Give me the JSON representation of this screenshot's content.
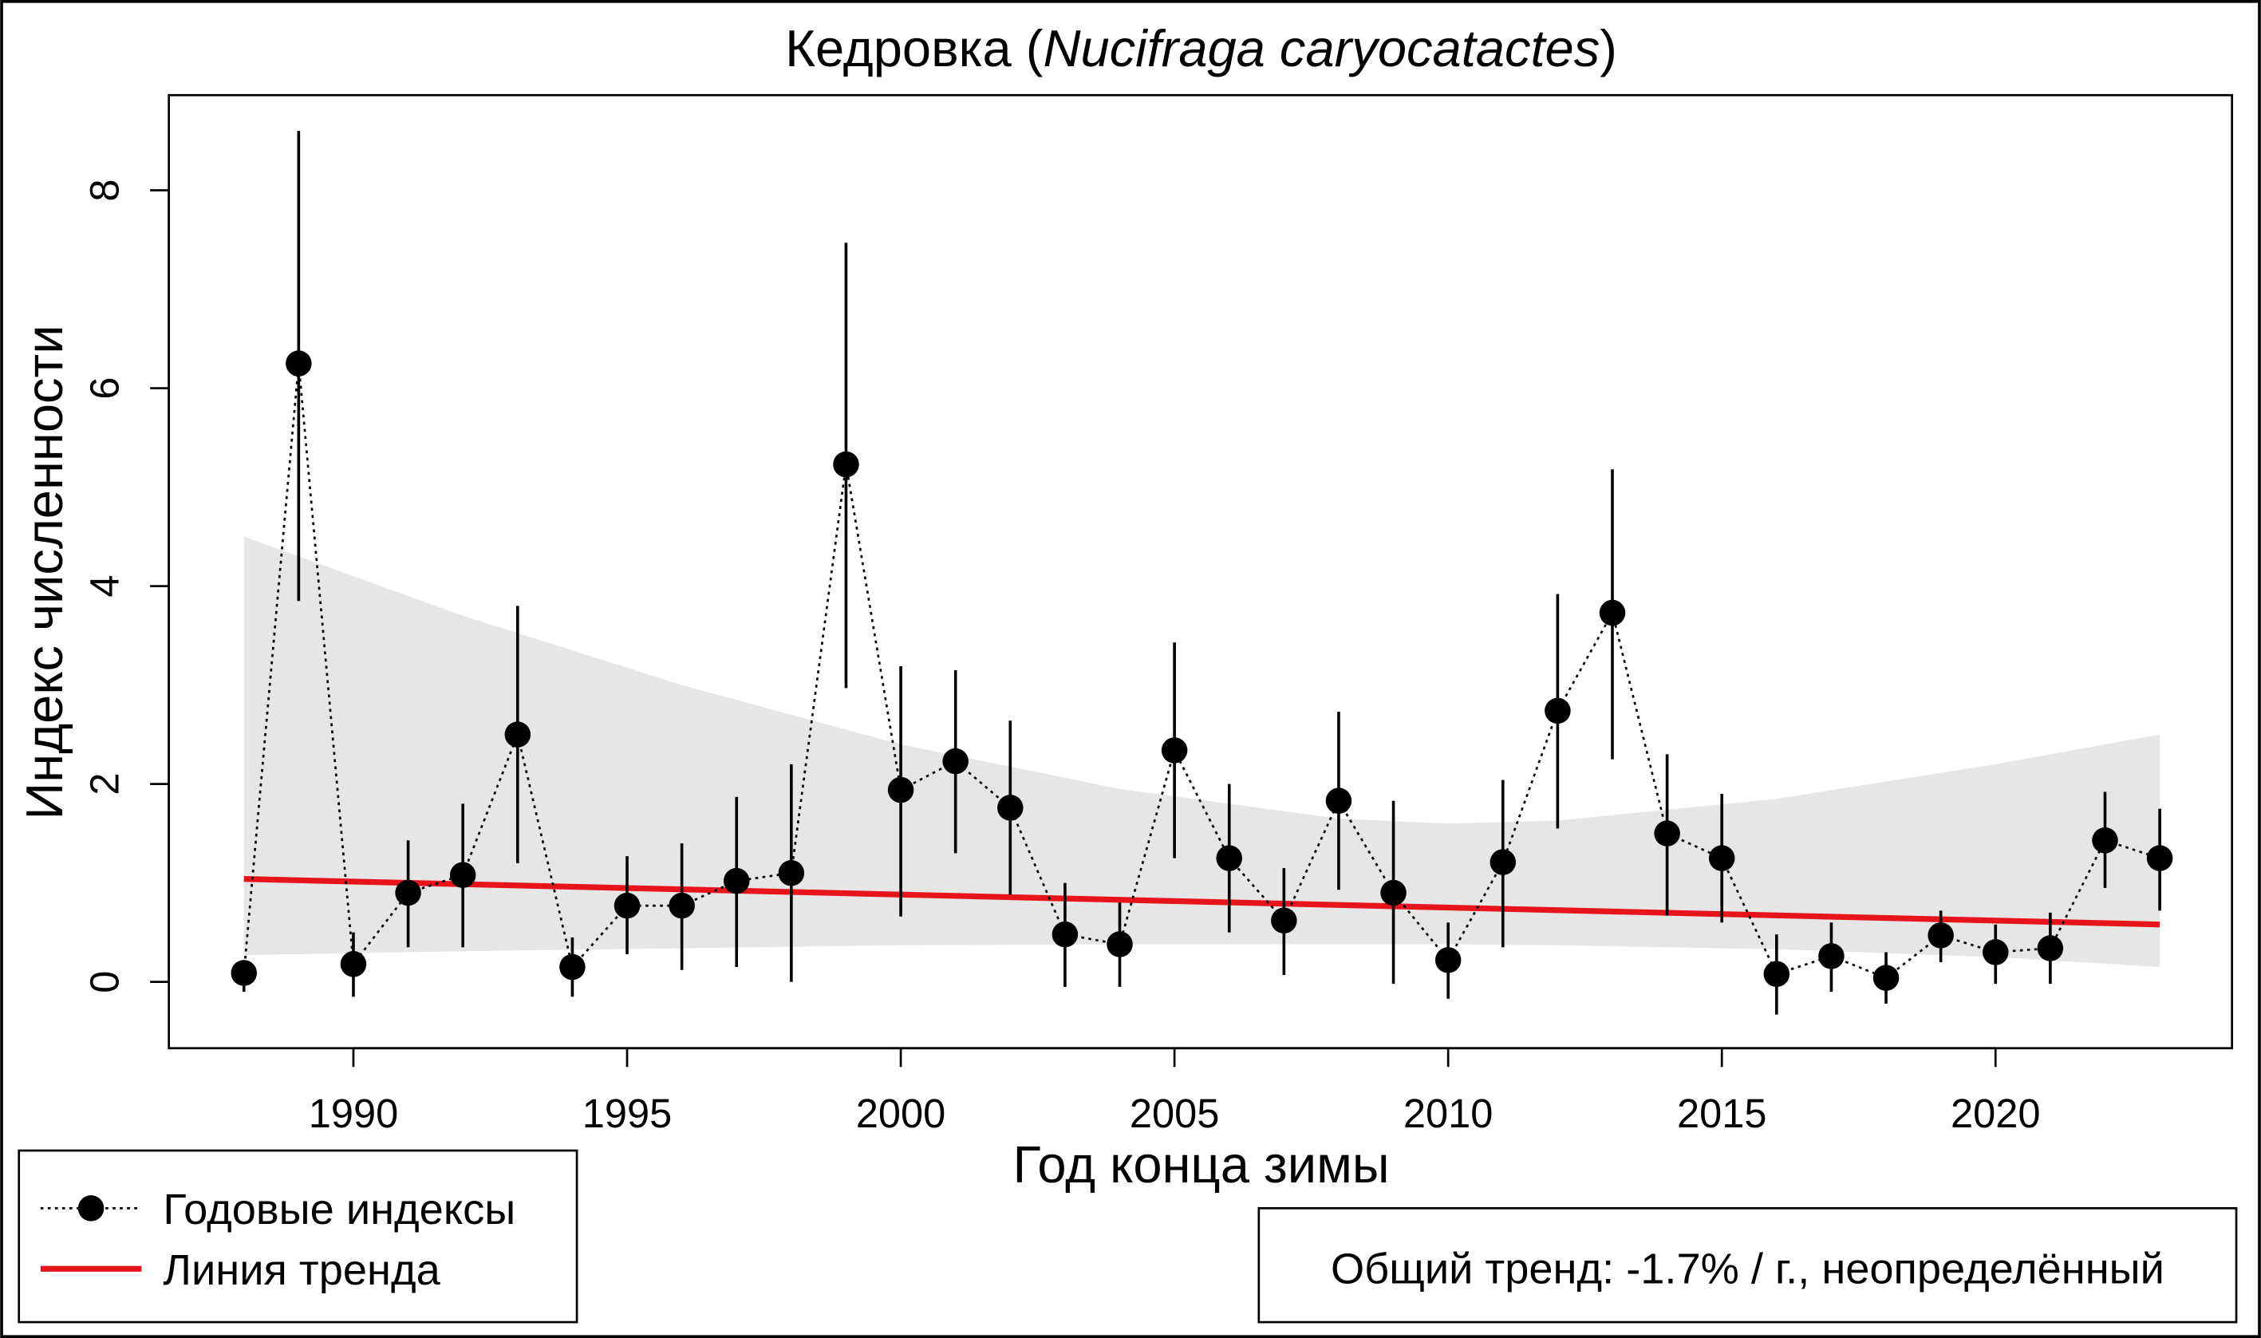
{
  "chart_data": {
    "type": "line",
    "title_plain": "Кедровка (",
    "title_italic": "Nucifraga caryocatactes",
    "title_end": ")",
    "xlabel": "Год конца зимы",
    "ylabel": "Индекс численности",
    "xlim": [
      1986.6,
      2024.3
    ],
    "ylim": [
      -0.7,
      8.95
    ],
    "xticks": [
      1990,
      1995,
      2000,
      2005,
      2010,
      2015,
      2020
    ],
    "yticks": [
      0,
      2,
      4,
      6,
      8
    ],
    "series": [
      {
        "name": "Годовые индексы",
        "x": [
          1988,
          1989,
          1990,
          1991,
          1992,
          1993,
          1994,
          1995,
          1996,
          1997,
          1998,
          1999,
          2000,
          2001,
          2002,
          2003,
          2004,
          2005,
          2006,
          2007,
          2008,
          2009,
          2010,
          2011,
          2012,
          2013,
          2014,
          2015,
          2016,
          2017,
          2018,
          2019,
          2020,
          2021,
          2022,
          2023
        ],
        "y": [
          0.09,
          6.25,
          0.18,
          0.9,
          1.08,
          2.5,
          0.15,
          0.77,
          0.77,
          1.02,
          1.1,
          5.23,
          1.94,
          2.23,
          1.76,
          0.48,
          0.38,
          2.34,
          1.25,
          0.62,
          1.83,
          0.9,
          0.22,
          1.21,
          2.74,
          3.73,
          1.5,
          1.25,
          0.08,
          0.26,
          0.04,
          0.47,
          0.3,
          0.34,
          1.43,
          1.25
        ],
        "lower": [
          -0.1,
          3.85,
          -0.15,
          0.35,
          0.35,
          1.2,
          -0.15,
          0.28,
          0.12,
          0.15,
          0.0,
          2.97,
          0.66,
          1.3,
          0.88,
          -0.05,
          -0.05,
          1.25,
          0.5,
          0.07,
          0.93,
          -0.02,
          -0.17,
          0.35,
          1.55,
          2.25,
          0.67,
          0.6,
          -0.33,
          -0.1,
          -0.22,
          0.2,
          -0.02,
          -0.02,
          0.95,
          0.72
        ],
        "upper": [
          0.15,
          8.6,
          0.5,
          1.43,
          1.8,
          3.8,
          0.45,
          1.27,
          1.4,
          1.87,
          2.2,
          7.47,
          3.19,
          3.15,
          2.64,
          1.0,
          0.8,
          3.43,
          2.0,
          1.15,
          2.73,
          1.83,
          0.6,
          2.04,
          3.92,
          5.18,
          2.3,
          1.9,
          0.48,
          0.6,
          0.3,
          0.72,
          0.58,
          0.7,
          1.92,
          1.75
        ]
      },
      {
        "name": "Линия тренда",
        "x": [
          1988,
          2023
        ],
        "y": [
          1.04,
          0.58
        ],
        "color": "#e8141c"
      }
    ],
    "confidence_band": {
      "x": [
        1988,
        1992,
        1996,
        2000,
        2004,
        2008,
        2010,
        2012,
        2016,
        2020,
        2023
      ],
      "upper": [
        4.5,
        3.7,
        3.0,
        2.4,
        1.95,
        1.65,
        1.6,
        1.63,
        1.85,
        2.2,
        2.5
      ],
      "lower": [
        0.27,
        0.31,
        0.34,
        0.37,
        0.38,
        0.38,
        0.38,
        0.37,
        0.33,
        0.25,
        0.15
      ],
      "color": "#e6e6e6"
    },
    "legend": {
      "placement": "bottom-left",
      "entries": [
        "Годовые индексы",
        "Линия тренда"
      ]
    },
    "annotation": "Общий тренд: -1.7% / г., неопределённый"
  }
}
